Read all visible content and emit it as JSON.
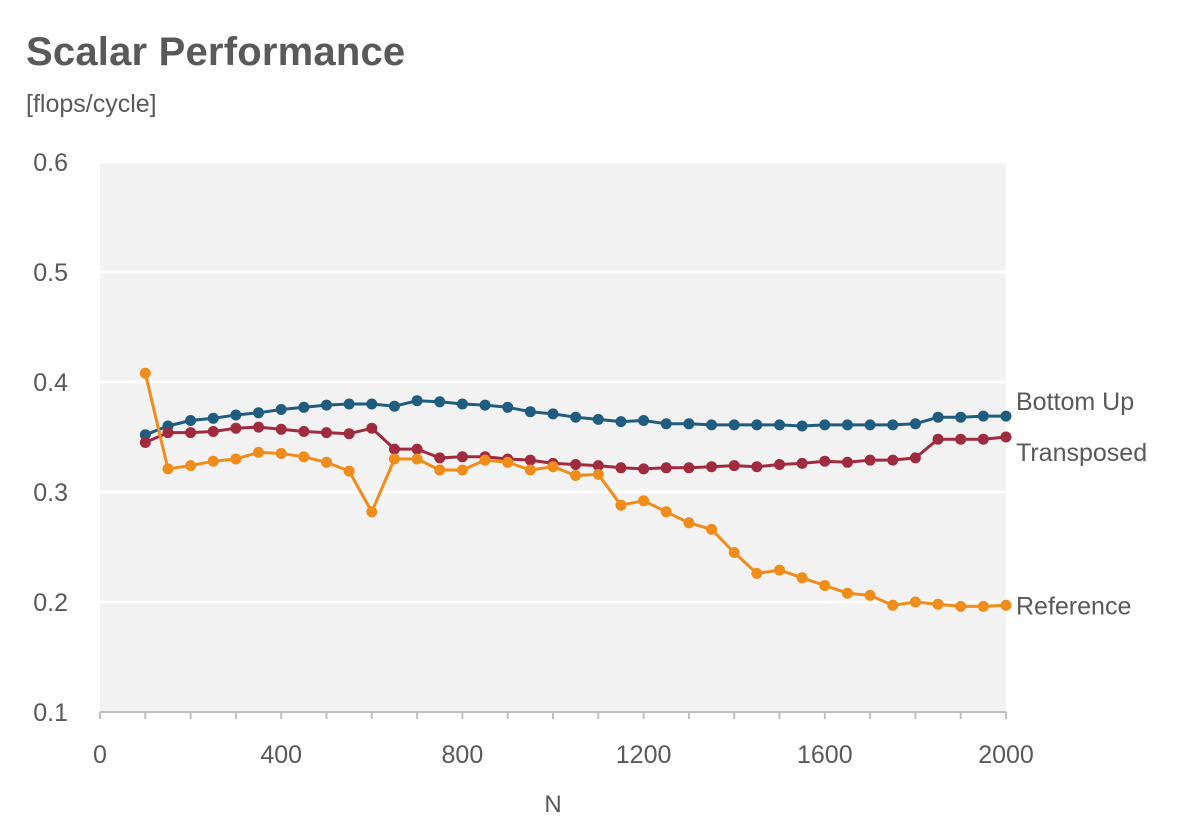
{
  "chart_data": {
    "type": "line",
    "title": "Scalar Performance",
    "subtitle": "[flops/cycle]",
    "xlabel": "N",
    "ylabel": "",
    "xlim": [
      0,
      2000
    ],
    "ylim": [
      0.1,
      0.6
    ],
    "x_ticks": [
      0,
      400,
      800,
      1200,
      1600,
      2000
    ],
    "x_tick_labels": [
      "0",
      "400",
      "800",
      "1200",
      "1600",
      "2000"
    ],
    "y_ticks": [
      0.1,
      0.2,
      0.3,
      0.4,
      0.5,
      0.6
    ],
    "y_tick_labels": [
      "0.1",
      "0.2",
      "0.3",
      "0.4",
      "0.5",
      "0.6"
    ],
    "grid": "horizontal",
    "legend": "inline labels at right end of each series",
    "x": [
      100,
      150,
      200,
      250,
      300,
      350,
      400,
      450,
      500,
      550,
      600,
      650,
      700,
      750,
      800,
      850,
      900,
      950,
      1000,
      1050,
      1100,
      1150,
      1200,
      1250,
      1300,
      1350,
      1400,
      1450,
      1500,
      1550,
      1600,
      1650,
      1700,
      1750,
      1800,
      1850,
      1900,
      1950,
      2000
    ],
    "series": [
      {
        "name": "Bottom Up",
        "color": "#1f5c80",
        "values": [
          0.352,
          0.36,
          0.365,
          0.367,
          0.37,
          0.372,
          0.375,
          0.377,
          0.379,
          0.38,
          0.38,
          0.378,
          0.383,
          0.382,
          0.38,
          0.379,
          0.377,
          0.373,
          0.371,
          0.368,
          0.366,
          0.364,
          0.365,
          0.362,
          0.362,
          0.361,
          0.361,
          0.361,
          0.361,
          0.36,
          0.361,
          0.361,
          0.361,
          0.361,
          0.362,
          0.368,
          0.368,
          0.369,
          0.369
        ]
      },
      {
        "name": "Transposed",
        "color": "#a02b3f",
        "values": [
          0.345,
          0.354,
          0.354,
          0.355,
          0.358,
          0.359,
          0.357,
          0.355,
          0.354,
          0.353,
          0.358,
          0.339,
          0.339,
          0.331,
          0.332,
          0.332,
          0.33,
          0.329,
          0.326,
          0.325,
          0.324,
          0.322,
          0.321,
          0.322,
          0.322,
          0.323,
          0.324,
          0.323,
          0.325,
          0.326,
          0.328,
          0.327,
          0.329,
          0.329,
          0.331,
          0.348,
          0.348,
          0.348,
          0.35
        ]
      },
      {
        "name": "Reference",
        "color": "#f08c1a",
        "values": [
          0.408,
          0.321,
          0.324,
          0.328,
          0.33,
          0.336,
          0.335,
          0.332,
          0.327,
          0.319,
          0.282,
          0.33,
          0.33,
          0.32,
          0.32,
          0.329,
          0.327,
          0.32,
          0.323,
          0.315,
          0.316,
          0.288,
          0.292,
          0.282,
          0.272,
          0.266,
          0.245,
          0.226,
          0.229,
          0.222,
          0.215,
          0.208,
          0.206,
          0.197,
          0.2,
          0.198,
          0.196,
          0.196,
          0.197
        ]
      }
    ]
  }
}
